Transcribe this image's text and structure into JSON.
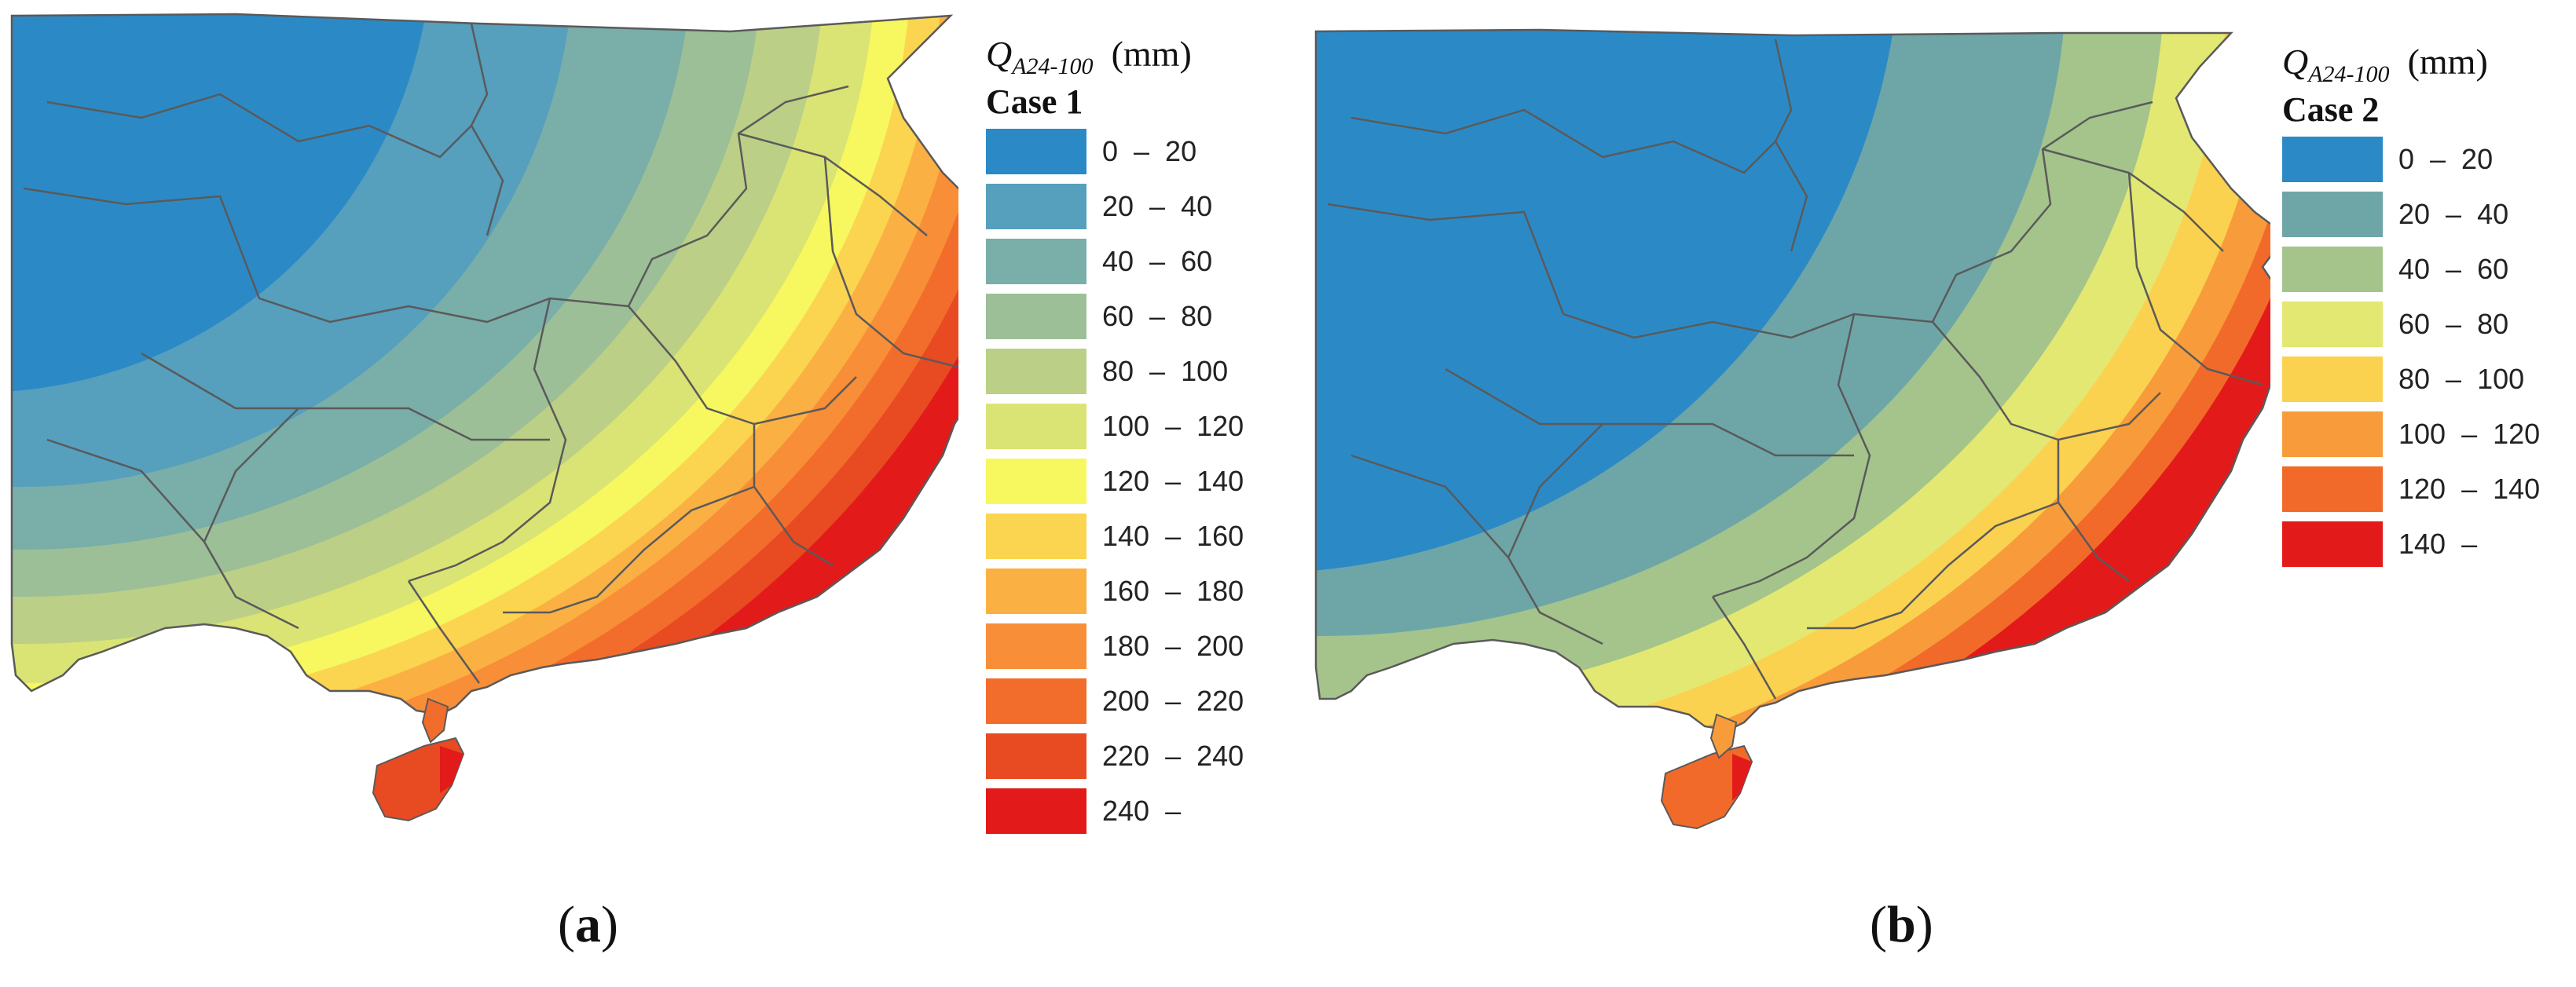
{
  "panels": [
    {
      "caption": "a",
      "legend": {
        "title_main": "Q",
        "title_sub": "A24-100",
        "unit": "(mm)",
        "case": "Case 1",
        "classes": [
          {
            "range": "0  –  20",
            "color": "#2b8ac6"
          },
          {
            "range": "20  –  40",
            "color": "#569fbd"
          },
          {
            "range": "40  –  60",
            "color": "#7aaea8"
          },
          {
            "range": "60  –  80",
            "color": "#9cbf97"
          },
          {
            "range": "80  –  100",
            "color": "#bccf86"
          },
          {
            "range": "100  –  120",
            "color": "#dae474"
          },
          {
            "range": "120  –  140",
            "color": "#f7f75f"
          },
          {
            "range": "140  –  160",
            "color": "#fbd450"
          },
          {
            "range": "160  –  180",
            "color": "#fbb043"
          },
          {
            "range": "180  –  200",
            "color": "#f88e37"
          },
          {
            "range": "200  –  220",
            "color": "#f26d2c"
          },
          {
            "range": "220  –  240",
            "color": "#e84a22"
          },
          {
            "range": "240  –",
            "color": "#e31a1a"
          }
        ]
      }
    },
    {
      "caption": "b",
      "legend": {
        "title_main": "Q",
        "title_sub": "A24-100",
        "unit": "(mm)",
        "case": "Case 2",
        "classes": [
          {
            "range": "0  –  20",
            "color": "#2b8ac6"
          },
          {
            "range": "20  –  40",
            "color": "#6ea6a8"
          },
          {
            "range": "40  –  60",
            "color": "#a4c48c"
          },
          {
            "range": "60  –  80",
            "color": "#e3e873"
          },
          {
            "range": "80  –  100",
            "color": "#fbd24f"
          },
          {
            "range": "100  –  120",
            "color": "#f89c3b"
          },
          {
            "range": "120  –  140",
            "color": "#f26a2a"
          },
          {
            "range": "140  –",
            "color": "#e31a1a"
          }
        ]
      }
    }
  ]
}
